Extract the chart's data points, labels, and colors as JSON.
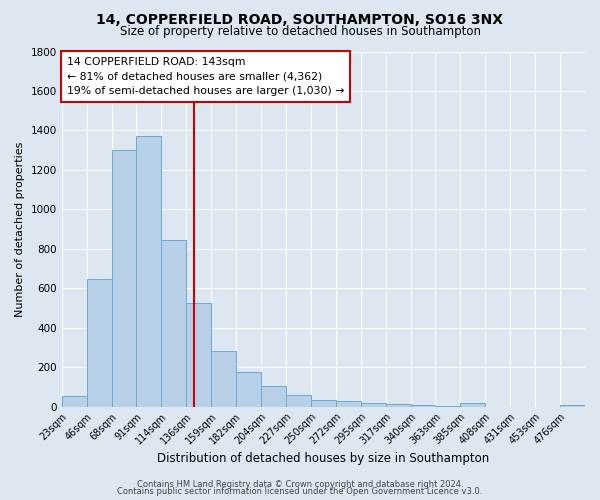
{
  "title": "14, COPPERFIELD ROAD, SOUTHAMPTON, SO16 3NX",
  "subtitle": "Size of property relative to detached houses in Southampton",
  "xlabel": "Distribution of detached houses by size in Southampton",
  "ylabel": "Number of detached properties",
  "footer_line1": "Contains HM Land Registry data © Crown copyright and database right 2024.",
  "footer_line2": "Contains public sector information licensed under the Open Government Licence v3.0.",
  "bin_labels": [
    "23sqm",
    "46sqm",
    "68sqm",
    "91sqm",
    "114sqm",
    "136sqm",
    "159sqm",
    "182sqm",
    "204sqm",
    "227sqm",
    "250sqm",
    "272sqm",
    "295sqm",
    "317sqm",
    "340sqm",
    "363sqm",
    "385sqm",
    "408sqm",
    "431sqm",
    "453sqm",
    "476sqm"
  ],
  "bar_values": [
    55,
    645,
    1300,
    1370,
    845,
    525,
    280,
    175,
    105,
    60,
    35,
    30,
    20,
    15,
    10,
    5,
    20,
    0,
    0,
    0,
    10
  ],
  "bar_color": "#b8cfe8",
  "bar_edge_color": "#6aaad4",
  "vline_index": 5,
  "vline_color": "#cc0000",
  "ylim": [
    0,
    1800
  ],
  "yticks": [
    0,
    200,
    400,
    600,
    800,
    1000,
    1200,
    1400,
    1600,
    1800
  ],
  "annotation_title": "14 COPPERFIELD ROAD: 143sqm",
  "annotation_line2": "← 81% of detached houses are smaller (4,362)",
  "annotation_line3": "19% of semi-detached houses are larger (1,030) →",
  "annotation_box_color": "#ffffff",
  "annotation_box_edge": "#cc0000",
  "background_color": "#dde7f2",
  "plot_bg_color": "#dde7f2",
  "grid_color": "#ffffff",
  "title_fontsize": 10,
  "subtitle_fontsize": 8.5,
  "ylabel_fontsize": 8,
  "xlabel_fontsize": 8.5,
  "footer_fontsize": 6,
  "n_bars": 21
}
